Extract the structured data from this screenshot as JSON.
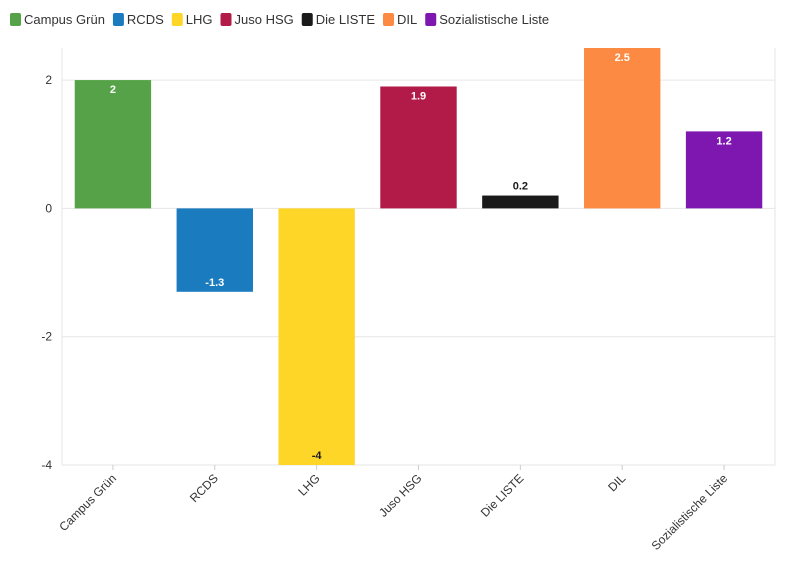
{
  "chart_data": {
    "type": "bar",
    "categories": [
      "Campus Grün",
      "RCDS",
      "LHG",
      "Juso HSG",
      "Die LISTE",
      "DIL",
      "Sozialistische Liste"
    ],
    "values": [
      2,
      -1.3,
      -4,
      1.9,
      0.2,
      2.5,
      1.2
    ],
    "value_labels": [
      "2",
      "-1.3",
      "-4",
      "1.9",
      "0.2",
      "2.5",
      "1.2"
    ],
    "colors": [
      "#55a248",
      "#1a7bbf",
      "#fed628",
      "#b21a47",
      "#1a1a1a",
      "#fc8a43",
      "#7e16b0"
    ],
    "label_colors": [
      "#ffffff",
      "#ffffff",
      "#1a1a1a",
      "#ffffff",
      "#1a1a1a",
      "#ffffff",
      "#ffffff"
    ],
    "legend": {
      "placement": "top-left",
      "entries": [
        "Campus Grün",
        "RCDS",
        "LHG",
        "Juso HSG",
        "Die LISTE",
        "DIL",
        "Sozialistische Liste"
      ]
    },
    "y_ticks": [
      2,
      0,
      -2,
      -4
    ],
    "y_tick_labels": [
      "2",
      "0",
      "-2",
      "-4"
    ],
    "ylim": [
      -4,
      2.5
    ],
    "grid": true,
    "title": "",
    "xlabel": "",
    "ylabel": ""
  }
}
